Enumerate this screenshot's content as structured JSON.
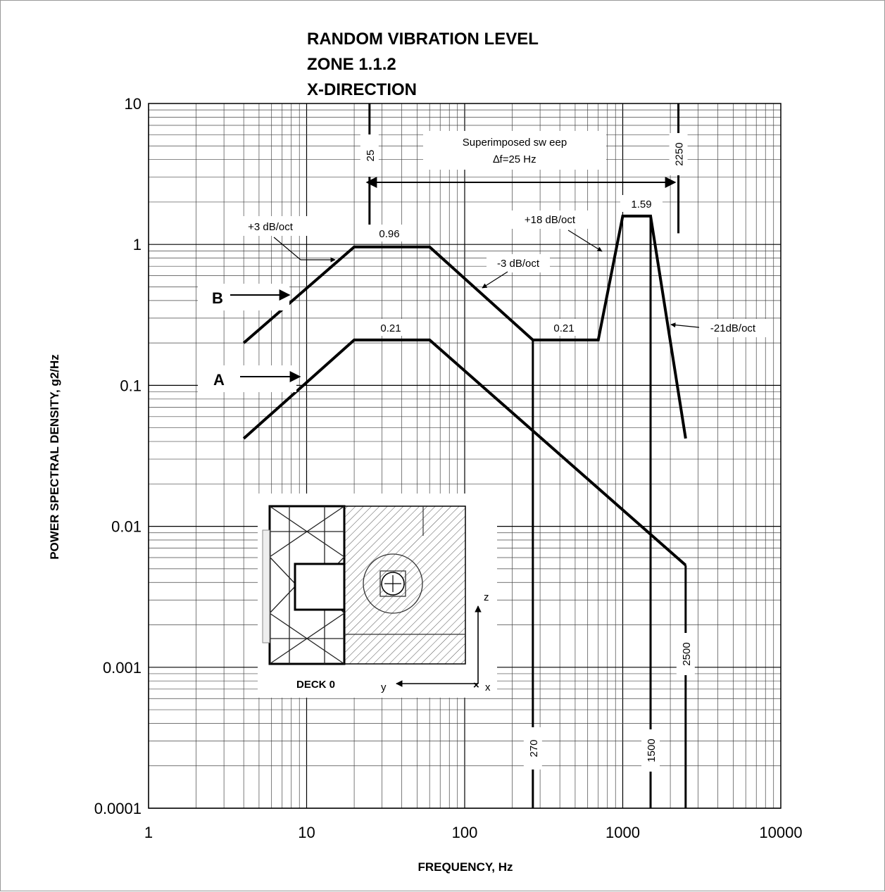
{
  "chart_data": {
    "type": "line",
    "title_lines": [
      "RANDOM VIBRATION LEVEL",
      "ZONE 1.1.2",
      "X-DIRECTION"
    ],
    "xlabel": "FREQUENCY, Hz",
    "ylabel": "POWER SPECTRAL DENSITY, g2/Hz",
    "x_scale": "log",
    "y_scale": "log",
    "xlim": [
      1,
      10000
    ],
    "ylim": [
      0.0001,
      10
    ],
    "x_ticks": [
      1,
      10,
      100,
      1000,
      10000
    ],
    "x_tick_labels": [
      "1",
      "10",
      "100",
      "1000",
      "10000"
    ],
    "y_ticks": [
      0.0001,
      0.001,
      0.01,
      0.1,
      1,
      10
    ],
    "y_tick_labels": [
      "0.0001",
      "0.001",
      "0.01",
      "0.1",
      "1",
      "10"
    ],
    "grid": true,
    "series": [
      {
        "name": "A",
        "x": [
          4,
          20,
          60,
          2500
        ],
        "y": [
          0.042,
          0.21,
          0.21,
          0.0053
        ]
      },
      {
        "name": "B",
        "x": [
          4,
          20,
          60,
          270,
          700,
          1000,
          1500,
          2500
        ],
        "y": [
          0.2,
          0.96,
          0.96,
          0.21,
          0.21,
          1.59,
          1.59,
          0.042
        ]
      }
    ],
    "vertical_markers": [
      {
        "x": 25,
        "label": "25",
        "y_from": 1.2,
        "y_to": 10
      },
      {
        "x": 2250,
        "label": "2250",
        "y_from": 1.2,
        "y_to": 10
      },
      {
        "x": 270,
        "label": "270",
        "y_from": 0.0001,
        "y_to": 0.21
      },
      {
        "x": 1500,
        "label": "1500",
        "y_from": 0.0001,
        "y_to": 1.59
      },
      {
        "x": 2500,
        "label": "2500",
        "y_from": 0.0001,
        "y_to": 0.0053
      }
    ],
    "annotations": {
      "sweep_line1": "Superimposed sw eep",
      "sweep_line2": "∆f=25 Hz",
      "plus3": "+3 dB/oct",
      "minus3": "-3 dB/oct",
      "plus18": "+18 dB/oct",
      "minus21": "-21dB/oct",
      "val_096": "0.96",
      "val_021_a": "0.21",
      "val_021_b": "0.21",
      "val_159": "1.59",
      "label_A": "A",
      "label_B": "B"
    },
    "inset": {
      "caption": "DECK 0",
      "axis_z": "z",
      "axis_y": "y",
      "axis_x": "x"
    }
  }
}
